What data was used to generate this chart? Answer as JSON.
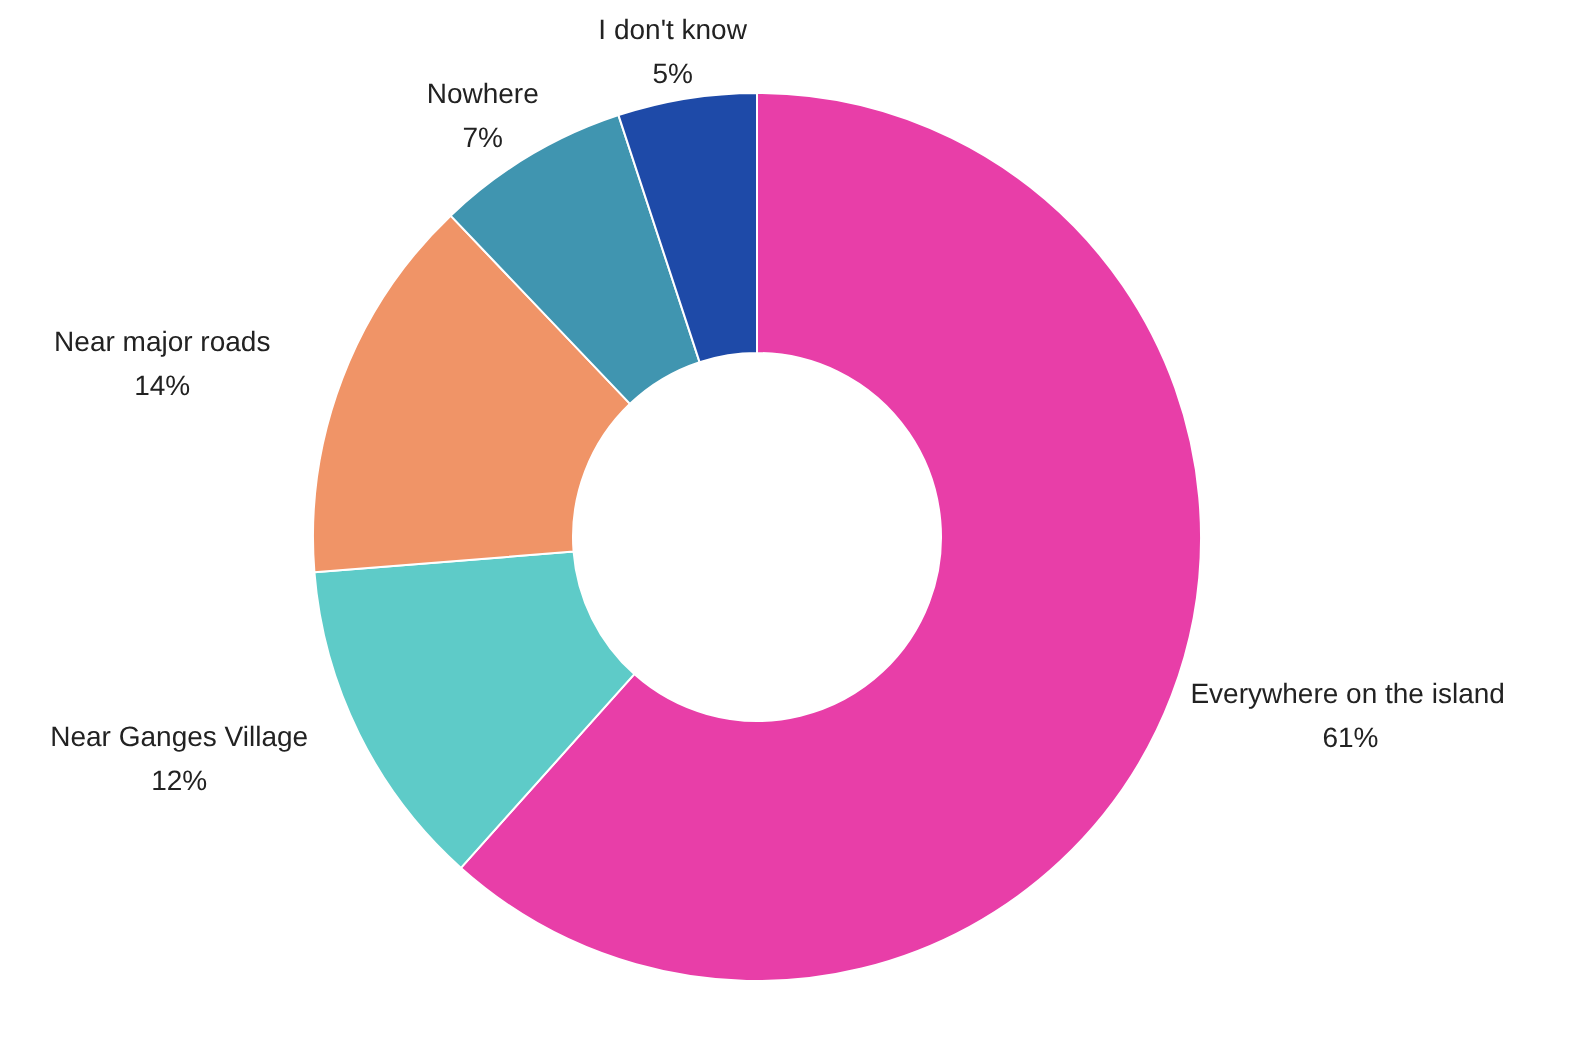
{
  "chart_data": {
    "type": "donut",
    "categories": [
      "Everywhere on the island",
      "Near Ganges Village",
      "Near major roads",
      "Nowhere",
      "I don't know"
    ],
    "values": [
      61,
      12,
      14,
      7,
      5
    ],
    "value_labels": [
      "61%",
      "12%",
      "14%",
      "7%",
      "5%"
    ],
    "colors": [
      "#e83ea8",
      "#5ecbc8",
      "#f09467",
      "#4095b0",
      "#1e4aa8"
    ]
  }
}
